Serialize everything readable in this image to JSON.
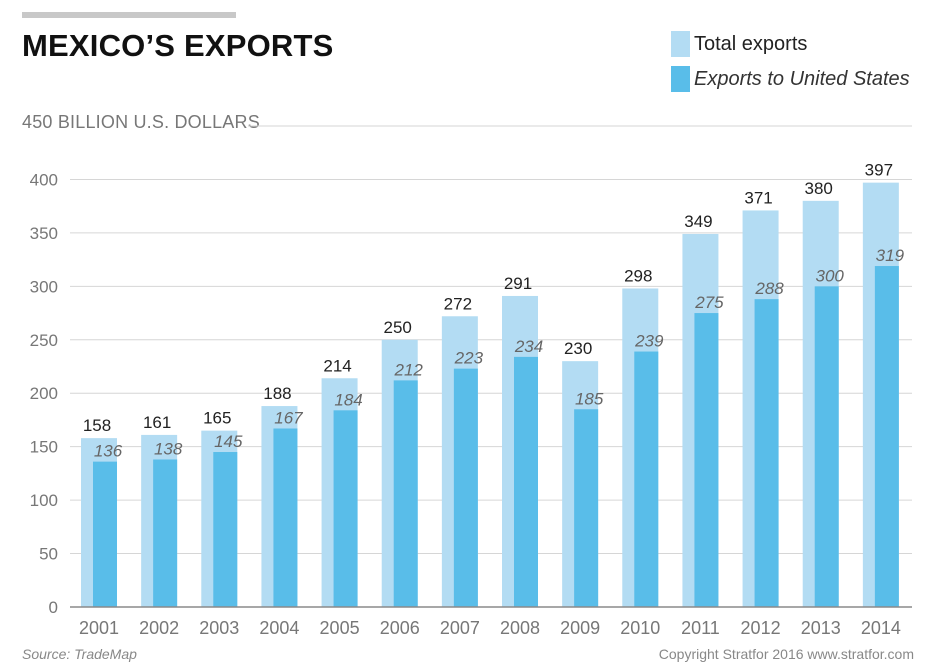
{
  "title": "MEXICO’S EXPORTS",
  "unit_label": "450 BILLION U.S. DOLLARS",
  "source": "Source: TradeMap",
  "copyright": "Copyright Stratfor 2016   www.stratfor.com",
  "legend": [
    {
      "label": "Total exports",
      "color": "#b3dcf3",
      "italic": false
    },
    {
      "label": "Exports to United States",
      "color": "#59bde9",
      "italic": true
    }
  ],
  "chart_data": {
    "type": "bar",
    "categories": [
      "2001",
      "2002",
      "2003",
      "2004",
      "2005",
      "2006",
      "2007",
      "2008",
      "2009",
      "2010",
      "2011",
      "2012",
      "2013",
      "2014"
    ],
    "series": [
      {
        "name": "Total exports",
        "color": "#b3dcf3",
        "values": [
          158,
          161,
          165,
          188,
          214,
          250,
          272,
          291,
          230,
          298,
          349,
          371,
          380,
          397
        ]
      },
      {
        "name": "Exports to United States",
        "color": "#59bde9",
        "values": [
          136,
          138,
          145,
          167,
          184,
          212,
          223,
          234,
          185,
          239,
          275,
          288,
          300,
          319
        ]
      }
    ],
    "ylim": [
      0,
      450
    ],
    "yticks": [
      0,
      50,
      100,
      150,
      200,
      250,
      300,
      350,
      400
    ],
    "ylabel": "450 BILLION U.S. DOLLARS",
    "grid": true,
    "legend_position": "top-right"
  }
}
